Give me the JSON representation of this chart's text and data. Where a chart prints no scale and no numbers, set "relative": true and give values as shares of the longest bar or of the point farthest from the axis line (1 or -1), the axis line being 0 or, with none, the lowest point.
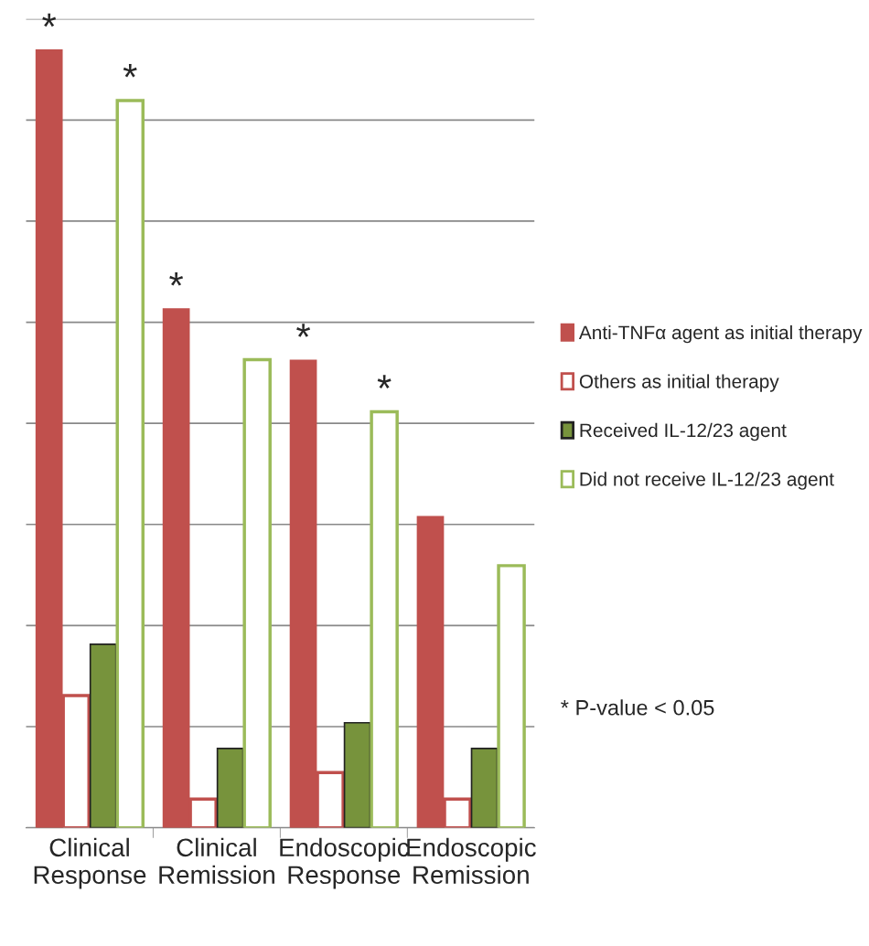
{
  "chart_data": {
    "type": "bar",
    "relative": true,
    "grid": "y",
    "legend": "right",
    "categories": [
      "Clinical Response",
      "Clinical Remission",
      "Endoscopic Response",
      "Endoscopic Remission"
    ],
    "series": [
      {
        "name": "Anti-TNFα agent as initial therapy",
        "color": "#c0504d",
        "values": [
          1,
          0.667,
          0.601,
          0.4
        ]
      },
      {
        "name": "Others as initial therapy",
        "color": "#c0504d",
        "values": [
          0.17,
          0.037,
          0.071,
          0.037
        ]
      },
      {
        "name": "Received IL-12/23 agent",
        "color": "#77933c",
        "values": [
          0.236,
          0.102,
          0.135,
          0.102
        ]
      },
      {
        "name": "Did not receive IL-12/23 agent",
        "color": "#9bbb59",
        "values": [
          0.935,
          0.602,
          0.535,
          0.337
        ]
      }
    ],
    "annotations": [
      "*",
      "*",
      "*",
      "*",
      "*",
      "* P-value < 0.05"
    ]
  }
}
